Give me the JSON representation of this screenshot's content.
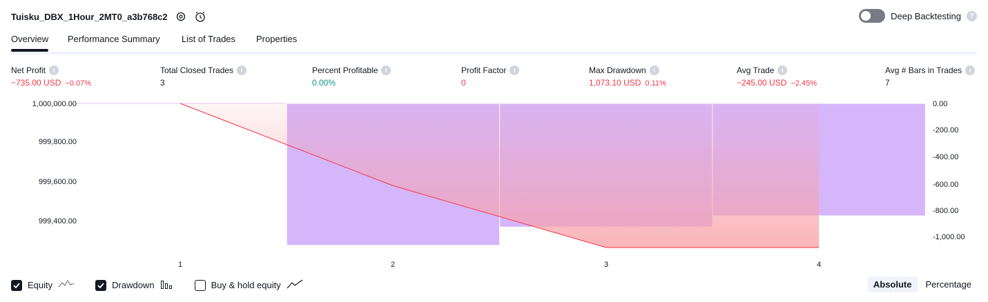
{
  "header": {
    "strategy_name": "Tuisku_DBX_1Hour_2MT0_a3b768c2",
    "settings_icon": "gear-icon",
    "alert_icon": "alarm-clock-icon",
    "deep_backtesting_label": "Deep Backtesting",
    "deep_backtesting_enabled": false
  },
  "tabs": [
    {
      "label": "Overview",
      "active": true
    },
    {
      "label": "Performance Summary",
      "active": false
    },
    {
      "label": "List of Trades",
      "active": false
    },
    {
      "label": "Properties",
      "active": false
    }
  ],
  "metrics": [
    {
      "label": "Net Profit",
      "value": "−735.00 USD",
      "pct": "−0.07%",
      "tone": "neg"
    },
    {
      "label": "Total Closed Trades",
      "value": "3",
      "pct": "",
      "tone": "neu"
    },
    {
      "label": "Percent Profitable",
      "value": "0.00%",
      "pct": "",
      "tone": "pos"
    },
    {
      "label": "Profit Factor",
      "value": "0",
      "pct": "",
      "tone": "neg"
    },
    {
      "label": "Max Drawdown",
      "value": "1,073.10 USD",
      "pct": "0.11%",
      "tone": "neg"
    },
    {
      "label": "Avg Trade",
      "value": "−245.00 USD",
      "pct": "−2.45%",
      "tone": "neg"
    },
    {
      "label": "Avg # Bars in Trades",
      "value": "7",
      "pct": "",
      "tone": "neu"
    }
  ],
  "chart_data": {
    "type": "line",
    "x_ticks": [
      "1",
      "2",
      "3",
      "4"
    ],
    "y_left_ticks": [
      "1,000,000.00",
      "999,800.00",
      "999,600.00",
      "999,400.00"
    ],
    "y_left_range": [
      999265,
      1000000
    ],
    "y_right_ticks": [
      "0.00",
      "-200.00",
      "-400.00",
      "-600.00",
      "-800.00",
      "-1,000.00"
    ],
    "y_right_range": [
      -1090,
      0
    ],
    "series": [
      {
        "name": "Equity",
        "x": [
          1,
          2,
          3,
          4
        ],
        "values": [
          1000000,
          999580,
          999265,
          999265
        ]
      },
      {
        "name": "Drawdown",
        "type": "bar",
        "x": [
          1.5,
          2.5,
          3.5,
          4.5
        ],
        "values": [
          -1073.1,
          -935,
          -850,
          -850
        ]
      }
    ],
    "colors": {
      "equity_line": "#f23645",
      "drawdown_bar": "#d5b6fb",
      "equity_fill": "#f7a1a8"
    }
  },
  "legend": {
    "equity": {
      "label": "Equity",
      "checked": true
    },
    "drawdown": {
      "label": "Drawdown",
      "checked": true
    },
    "buy_hold": {
      "label": "Buy & hold equity",
      "checked": false
    }
  },
  "modes": {
    "absolute": "Absolute",
    "percentage": "Percentage",
    "selected": "absolute"
  }
}
